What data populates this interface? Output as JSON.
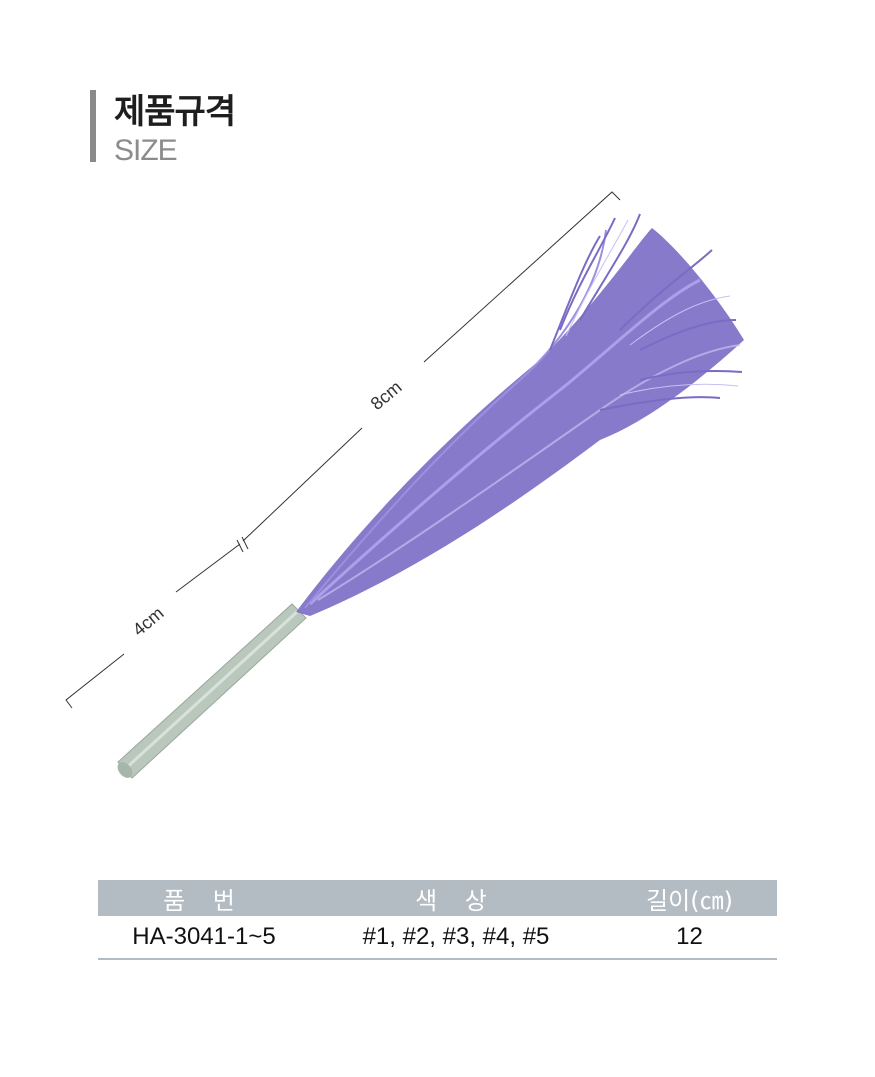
{
  "header": {
    "title_ko": "제품규격",
    "title_en": "SIZE"
  },
  "figure": {
    "dimension_total": "8cm",
    "dimension_handle": "4cm",
    "colors": {
      "tinsel": "#7a6cc4",
      "tinsel_highlight": "#b7a9f0",
      "handle": "#b9c7bd"
    }
  },
  "table": {
    "headers": [
      "품 번",
      "색 상",
      "길이(㎝)"
    ],
    "rows": [
      [
        "HA-3041-1~5",
        "#1, #2, #3, #4, #5",
        "12"
      ]
    ],
    "header_color": "#b3bcc3"
  }
}
